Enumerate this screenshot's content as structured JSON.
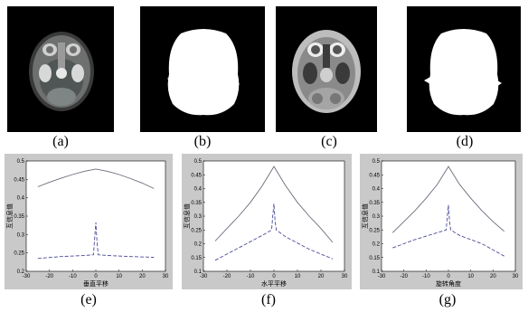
{
  "panels": {
    "a": {
      "caption": "(a)"
    },
    "b": {
      "caption": "(b)"
    },
    "c": {
      "caption": "(c)"
    },
    "d": {
      "caption": "(d)"
    }
  },
  "chart_data": [
    {
      "type": "line",
      "caption": "(e)",
      "xlabel": "垂直平移",
      "ylabel": "互信息值",
      "xlim": [
        -30,
        30
      ],
      "ylim": [
        0.2,
        0.5
      ],
      "xticks": [
        "-30",
        "-20",
        "-10",
        "0",
        "10",
        "20",
        "30"
      ],
      "yticks": [
        "0.2",
        "0.25",
        "0.3",
        "0.35",
        "0.4",
        "0.45",
        "0.5"
      ],
      "series": [
        {
          "style": "solid",
          "color": "#6b6b7a",
          "x": [
            -25,
            -20,
            -15,
            -10,
            -5,
            0,
            5,
            10,
            15,
            20,
            25
          ],
          "y": [
            0.43,
            0.442,
            0.453,
            0.463,
            0.472,
            0.478,
            0.472,
            0.463,
            0.452,
            0.44,
            0.425
          ]
        },
        {
          "style": "dashed",
          "color": "#4a4a9a",
          "x": [
            -25,
            -15,
            -5,
            -1,
            -0.5,
            0,
            0.5,
            1,
            5,
            15,
            25
          ],
          "y": [
            0.235,
            0.24,
            0.243,
            0.245,
            0.29,
            0.333,
            0.28,
            0.245,
            0.243,
            0.24,
            0.238
          ]
        }
      ]
    },
    {
      "type": "line",
      "caption": "(f)",
      "xlabel": "水平平移",
      "ylabel": "互信息值",
      "xlim": [
        -30,
        30
      ],
      "ylim": [
        0.1,
        0.5
      ],
      "xticks": [
        "-30",
        "-20",
        "-10",
        "0",
        "10",
        "20",
        "30"
      ],
      "yticks": [
        "0.1",
        "0.15",
        "0.2",
        "0.25",
        "0.3",
        "0.35",
        "0.4",
        "0.45",
        "0.5"
      ],
      "series": [
        {
          "style": "solid",
          "color": "#6b6b7a",
          "x": [
            -25,
            -20,
            -15,
            -10,
            -5,
            0,
            5,
            10,
            15,
            20,
            25
          ],
          "y": [
            0.21,
            0.255,
            0.3,
            0.35,
            0.41,
            0.48,
            0.41,
            0.35,
            0.3,
            0.255,
            0.205
          ]
        },
        {
          "style": "dashed",
          "color": "#4a4a9a",
          "x": [
            -25,
            -15,
            -5,
            -1,
            -0.5,
            0,
            0.5,
            1,
            5,
            15,
            25
          ],
          "y": [
            0.14,
            0.185,
            0.23,
            0.25,
            0.3,
            0.345,
            0.28,
            0.25,
            0.225,
            0.18,
            0.145
          ]
        }
      ]
    },
    {
      "type": "line",
      "caption": "(g)",
      "xlabel": "旋转角度",
      "ylabel": "互信息值",
      "xlim": [
        -30,
        30
      ],
      "ylim": [
        0.1,
        0.5
      ],
      "xticks": [
        "-30",
        "-20",
        "-10",
        "0",
        "10",
        "20",
        "30"
      ],
      "yticks": [
        "0.1",
        "0.15",
        "0.2",
        "0.25",
        "0.3",
        "0.35",
        "0.4",
        "0.45",
        "0.5"
      ],
      "series": [
        {
          "style": "solid",
          "color": "#6b6b7a",
          "x": [
            -25,
            -20,
            -15,
            -10,
            -5,
            0,
            5,
            10,
            15,
            20,
            25
          ],
          "y": [
            0.24,
            0.28,
            0.32,
            0.365,
            0.415,
            0.48,
            0.415,
            0.365,
            0.32,
            0.28,
            0.245
          ]
        },
        {
          "style": "dashed",
          "color": "#4a4a9a",
          "x": [
            -25,
            -15,
            -5,
            -1,
            -0.5,
            0,
            0.5,
            1,
            5,
            15,
            25
          ],
          "y": [
            0.185,
            0.215,
            0.24,
            0.25,
            0.3,
            0.34,
            0.28,
            0.25,
            0.23,
            0.2,
            0.155
          ]
        }
      ]
    }
  ]
}
